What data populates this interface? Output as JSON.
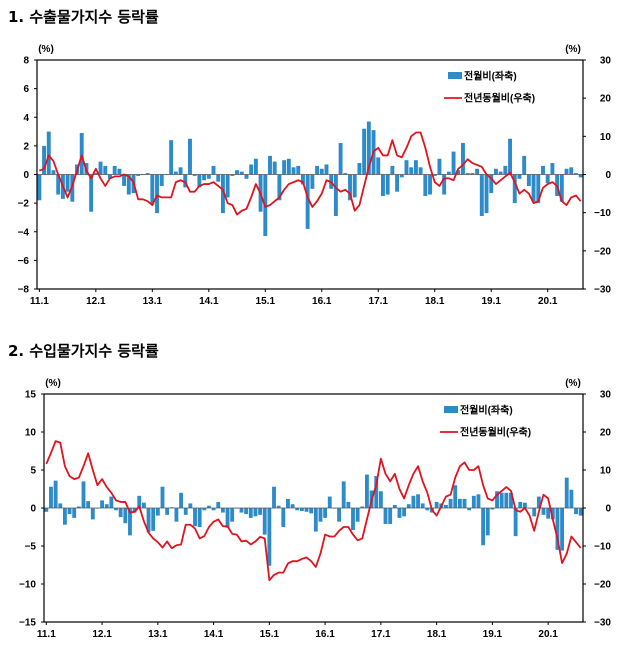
{
  "charts_titles": [
    "1. 수출물가지수 등락률",
    "2. 수입물가지수 등락률"
  ],
  "chart_data": [
    {
      "type": "bar+line",
      "title": "1. 수출물가지수 등락률",
      "x_start": "11.1",
      "x_end": "20.8",
      "x_tick_labels": [
        "11.1",
        "12.1",
        "13.1",
        "14.1",
        "15.1",
        "16.1",
        "17.1",
        "18.1",
        "19.1",
        "20.1"
      ],
      "left_unit": "(%)",
      "right_unit": "(%)",
      "ylim_left": [
        -8,
        8
      ],
      "yticks_left": [
        -8,
        -6,
        -4,
        -2,
        0,
        2,
        4,
        6,
        8
      ],
      "ylim_right": [
        -30,
        30
      ],
      "yticks_right": [
        -30,
        -20,
        -10,
        0,
        10,
        20,
        30
      ],
      "legend_position": "top-right",
      "grid": false,
      "series": [
        {
          "name": "전월비(좌축)",
          "type": "bar",
          "axis": "left",
          "color": "#2e8bc9",
          "values": [
            -1.8,
            2.0,
            3.0,
            0.3,
            -1.4,
            -1.7,
            -1.2,
            -1.9,
            0.7,
            2.9,
            0.8,
            -2.6,
            0.1,
            0.9,
            0.6,
            -0.3,
            0.6,
            0.4,
            -0.8,
            -1.4,
            -1.3,
            -0.1,
            0.0,
            0.1,
            -2.1,
            -2.7,
            -0.8,
            0.0,
            2.4,
            0.2,
            0.5,
            -0.9,
            2.5,
            -0.1,
            -0.9,
            -0.4,
            -0.3,
            0.6,
            -0.5,
            -2.7,
            -1.6,
            -0.1,
            0.3,
            0.2,
            -0.3,
            0.7,
            1.1,
            -2.6,
            -4.3,
            1.3,
            0.9,
            -1.8,
            1.0,
            1.1,
            0.5,
            0.6,
            -0.7,
            -3.8,
            -1.0,
            0.6,
            0.4,
            0.7,
            -1.0,
            -2.9,
            2.2,
            0.1,
            -1.8,
            -1.6,
            0.8,
            3.2,
            3.7,
            3.1,
            1.2,
            -1.5,
            -1.4,
            0.6,
            -1.2,
            -0.2,
            1.0,
            0.5,
            1.0,
            0.5,
            -1.5,
            -1.4,
            -0.1,
            1.1,
            -1.4,
            0.2,
            1.6,
            0.3,
            2.2,
            0.1,
            0.1,
            0.4,
            -2.9,
            -2.7,
            -1.3,
            0.4,
            0.2,
            0.6,
            2.5,
            -2.0,
            -0.3,
            1.3,
            -0.8,
            -1.9,
            -2.0,
            0.6,
            -0.6,
            0.8,
            -1.5,
            -1.9,
            0.4,
            0.5,
            0.1,
            -0.2
          ]
        },
        {
          "name": "전년동월비(우축)",
          "type": "line",
          "axis": "right",
          "color": "#e0141e",
          "values": [
            1,
            1.5,
            5,
            3.5,
            0,
            -3,
            -6,
            -3,
            1,
            5,
            1,
            -1,
            1.5,
            -1,
            -3,
            -1,
            -0.5,
            -0.5,
            0,
            -0.5,
            -2,
            -6.5,
            -6.5,
            -7,
            -8,
            -5.5,
            -6,
            -6,
            -6,
            -2,
            -1.5,
            -2,
            -4.5,
            -4.5,
            -3,
            -2.5,
            -2.5,
            -2,
            -3,
            -4,
            -7.5,
            -8,
            -10.5,
            -9.5,
            -9,
            -6,
            -2.5,
            -5,
            -8.5,
            -8,
            -7,
            -6,
            -4,
            -2.5,
            -2,
            -1.5,
            -2,
            -6,
            -8.5,
            -7,
            -5,
            -1.5,
            -2,
            -3.5,
            -4.5,
            -4,
            -5,
            -9.5,
            -8,
            -3,
            2,
            6,
            7,
            5,
            5,
            9,
            5,
            4.5,
            7,
            10,
            11,
            11,
            7,
            2,
            -2,
            -3,
            -1,
            -1,
            -1.5,
            1.5,
            2.5,
            4,
            3,
            2.5,
            2,
            0,
            -1,
            -2.5,
            -1.5,
            -0.5,
            0.5,
            -2,
            -5,
            -4,
            -5,
            -7.5,
            -7,
            -3.5,
            -2.5,
            -2,
            -3,
            -7,
            -8,
            -6,
            -5.5,
            -7
          ]
        }
      ]
    },
    {
      "type": "bar+line",
      "title": "2. 수입물가지수 등락률",
      "x_start": "11.1",
      "x_end": "20.8",
      "x_tick_labels": [
        "11.1",
        "12.1",
        "13.1",
        "14.1",
        "15.1",
        "16.1",
        "17.1",
        "18.1",
        "19.1",
        "20.1"
      ],
      "left_unit": "(%)",
      "right_unit": "(%)",
      "ylim_left": [
        -15,
        15
      ],
      "yticks_left": [
        -15,
        -10,
        -5,
        0,
        5,
        10,
        15
      ],
      "ylim_right": [
        -30,
        30
      ],
      "yticks_right": [
        -30,
        -20,
        -10,
        0,
        10,
        20,
        30
      ],
      "legend_position": "top-right",
      "grid": false,
      "series": [
        {
          "name": "전월비(좌축)",
          "type": "bar",
          "axis": "left",
          "color": "#2e8bc9",
          "values": [
            -0.5,
            2.8,
            3.6,
            0.6,
            -2.2,
            -0.8,
            -1.3,
            0.2,
            3.5,
            0.9,
            -1.5,
            0.0,
            1.0,
            0.5,
            1.5,
            -0.3,
            -1.2,
            -2.0,
            -3.6,
            -0.6,
            1.6,
            0.7,
            -3.2,
            -3.0,
            -1.0,
            2.8,
            -0.9,
            0.1,
            -1.8,
            2.0,
            -0.9,
            0.6,
            -2.4,
            -2.5,
            -0.3,
            0.3,
            -0.3,
            0.8,
            -0.6,
            -2.6,
            -1.8,
            0.0,
            -0.6,
            -0.8,
            -1.3,
            -1.1,
            -0.9,
            -3.5,
            -7.6,
            2.8,
            0.3,
            -2.5,
            1.2,
            0.5,
            -0.3,
            -0.4,
            -0.5,
            -0.7,
            -3.1,
            -1.8,
            -1.3,
            1.5,
            0.0,
            -1.8,
            3.5,
            0.8,
            -2.9,
            -1.8,
            0.2,
            4.4,
            2.3,
            4.2,
            2.2,
            -2.1,
            -2.1,
            0.4,
            -1.3,
            -1.1,
            0.5,
            1.6,
            1.8,
            0.6,
            -0.3,
            -0.6,
            0.8,
            0.6,
            0.4,
            1.2,
            3.0,
            1.2,
            1.2,
            -0.3,
            1.6,
            1.8,
            -4.9,
            -3.6,
            -0.2,
            2.2,
            2.0,
            2.0,
            2.0,
            -3.7,
            0.8,
            0.7,
            0.0,
            -1.1,
            1.5,
            -0.9,
            -1.4,
            -1.5,
            -5.5,
            -5.6,
            4.0,
            2.4,
            -0.8,
            -1.0
          ]
        },
        {
          "name": "전년동월비(우축)",
          "type": "line",
          "axis": "right",
          "color": "#e0141e",
          "values": [
            11.6,
            14.5,
            17.6,
            17.2,
            11,
            8.4,
            7.6,
            8,
            11,
            14.4,
            10,
            6,
            7.6,
            5.5,
            4,
            2,
            1.6,
            1.6,
            -1.2,
            -1,
            0.4,
            -3.5,
            -6.5,
            -8,
            -9,
            -10.4,
            -8.8,
            -10.6,
            -9.8,
            -9.6,
            -4.4,
            -4.4,
            -5.4,
            -8,
            -7.4,
            -5,
            -3.6,
            -3,
            -4.8,
            -4.8,
            -6.8,
            -7,
            -8.8,
            -8.6,
            -9.6,
            -8.8,
            -7.6,
            -8,
            -19,
            -17.6,
            -17,
            -17,
            -14.6,
            -14,
            -14,
            -13.4,
            -13,
            -14,
            -15.5,
            -12,
            -7,
            -7.5,
            -7.5,
            -6,
            -5,
            -5,
            -7,
            -8.5,
            -8,
            -3,
            2,
            6,
            13,
            9,
            7,
            9,
            5,
            2.5,
            6,
            9,
            11,
            7,
            4,
            -0.5,
            -2,
            0.5,
            3,
            3.5,
            8,
            11,
            12,
            10,
            10,
            11,
            6,
            2.5,
            2,
            3.5,
            4.5,
            5.5,
            4.5,
            -0.5,
            -1,
            0,
            -2,
            -6,
            -1,
            3.5,
            2.5,
            -3,
            -8,
            -14.5,
            -12,
            -7.5,
            -9,
            -10.5
          ]
        }
      ]
    }
  ]
}
